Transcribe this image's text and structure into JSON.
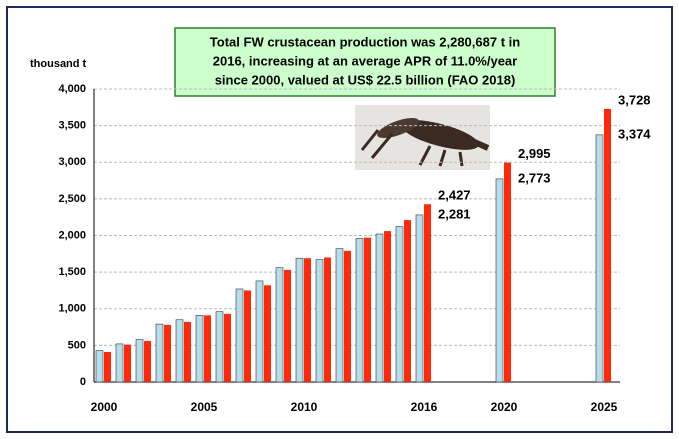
{
  "chart_data": {
    "type": "bar",
    "title": [
      "Total FW crustacean production was 2,280,687 t in",
      "2016, increasing at an average APR of 11.0%/year",
      "since 2000, valued at US$ 22.5 billion (FAO 2018)"
    ],
    "y_label": "thousand t",
    "categories": [
      "2000",
      null,
      null,
      null,
      null,
      "2005",
      null,
      null,
      null,
      null,
      "2010",
      null,
      null,
      null,
      null,
      null,
      "2016",
      null,
      null,
      null,
      "2020",
      null,
      null,
      null,
      null,
      "2025"
    ],
    "highlight_category_index": 16,
    "highlight_category_color": "#1a1aa6",
    "series": [
      {
        "color": "#b7dde8",
        "label_color": "#1a1a80",
        "values": [
          430,
          520,
          580,
          790,
          850,
          910,
          960,
          1270,
          1380,
          1560,
          1690,
          1670,
          1820,
          1960,
          2020,
          2120,
          2281,
          null,
          null,
          null,
          2773,
          null,
          null,
          null,
          null,
          3374
        ],
        "value_labels": [
          null,
          null,
          null,
          null,
          null,
          null,
          null,
          null,
          null,
          null,
          null,
          null,
          null,
          null,
          null,
          null,
          "2,281",
          null,
          null,
          null,
          "2,773",
          null,
          null,
          null,
          null,
          "3,374"
        ]
      },
      {
        "color": "#ff2a0a",
        "label_color": "#ee1111",
        "values": [
          410,
          510,
          560,
          780,
          820,
          910,
          930,
          1250,
          1320,
          1530,
          1690,
          1700,
          1790,
          1970,
          2060,
          2210,
          2427,
          null,
          null,
          null,
          2995,
          null,
          null,
          null,
          null,
          3728
        ],
        "value_labels": [
          null,
          null,
          null,
          null,
          null,
          null,
          null,
          null,
          null,
          null,
          null,
          null,
          null,
          null,
          null,
          null,
          "2,427",
          null,
          null,
          null,
          "2,995",
          null,
          null,
          null,
          null,
          "3,728"
        ]
      }
    ],
    "ylim": [
      0,
      4000
    ],
    "yticks": [
      0,
      500,
      {
        "value": 1000,
        "label": "1,000"
      },
      {
        "value": 1500,
        "label": "1,500"
      },
      {
        "value": 2000,
        "label": "2,000"
      },
      {
        "value": 2500,
        "label": "2,500"
      },
      {
        "value": 3000,
        "label": "3,000"
      },
      {
        "value": 3500,
        "label": "3,500"
      },
      {
        "value": 4000,
        "label": "4,000"
      }
    ],
    "grid": true
  }
}
